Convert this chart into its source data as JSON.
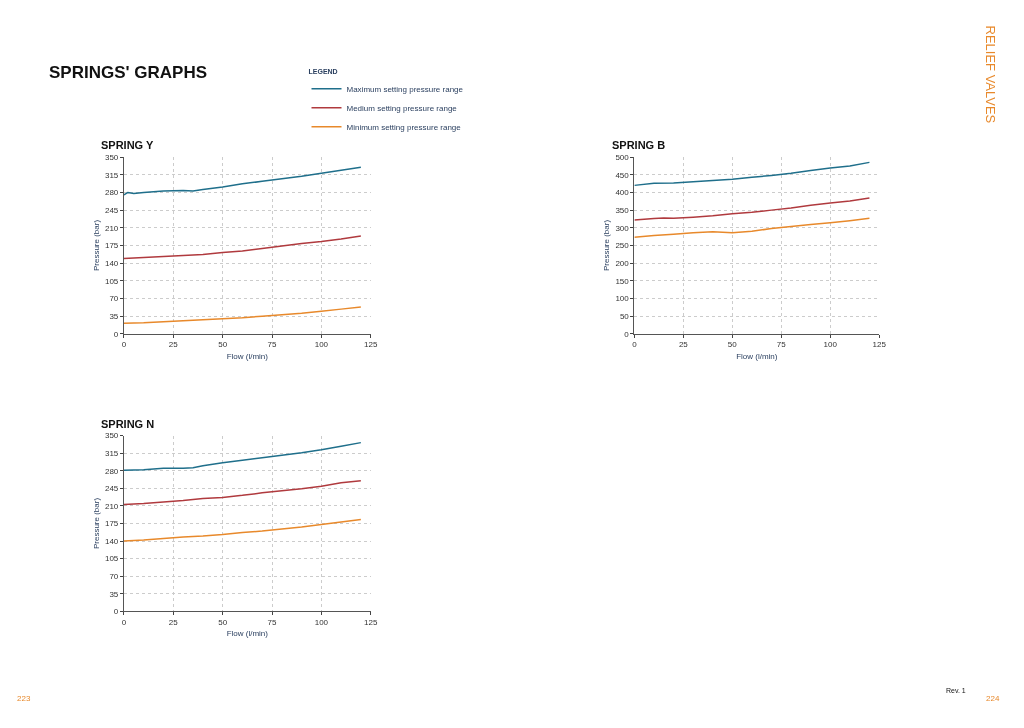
{
  "chart_data": [
    {
      "type": "line",
      "title": "SPRING Y",
      "xlabel": "Flow (l/min)",
      "ylabel": "Pressure (bar)",
      "legend_title": "LEGEND",
      "legend": "top",
      "grid": true,
      "marker": "none",
      "line_style": "solid",
      "xlim": [
        0,
        125
      ],
      "xticks": [
        0,
        25,
        50,
        75,
        100,
        125
      ],
      "ylim": [
        0,
        350
      ],
      "yticks": [
        0,
        35,
        70,
        105,
        140,
        175,
        210,
        245,
        280,
        315,
        350
      ],
      "annotations": [
        "SPRINGS' GRAPHS",
        "RELIEF VALVES",
        "223",
        "224",
        "Rev. 1"
      ],
      "series": [
        {
          "name": "Maximum setting pressure range",
          "color": "#1f6f8b",
          "x": [
            0,
            2,
            5,
            10,
            20,
            30,
            35,
            40,
            50,
            60,
            70,
            80,
            90,
            100,
            110,
            120
          ],
          "values": [
            275,
            280,
            278,
            280,
            283,
            284,
            283,
            286,
            291,
            297,
            302,
            307,
            312,
            318,
            324,
            330
          ]
        },
        {
          "name": "Medium setting pressure range",
          "color": "#b03a3e",
          "x": [
            0,
            10,
            20,
            30,
            40,
            50,
            60,
            70,
            80,
            90,
            100,
            110,
            120
          ],
          "values": [
            149,
            151,
            153,
            155,
            157,
            161,
            164,
            169,
            174,
            179,
            183,
            188,
            194
          ]
        },
        {
          "name": "Minimum setting pressure range",
          "color": "#e8892b",
          "x": [
            0,
            10,
            20,
            30,
            40,
            50,
            60,
            70,
            80,
            90,
            100,
            110,
            120
          ],
          "values": [
            21,
            22,
            24,
            26,
            28,
            30,
            32,
            35,
            38,
            41,
            45,
            49,
            53
          ]
        }
      ]
    },
    {
      "type": "line",
      "title": "SPRING B",
      "xlabel": "Flow (l/min)",
      "ylabel": "Pressure (bar)",
      "grid": true,
      "marker": "none",
      "line_style": "solid",
      "xlim": [
        0,
        125
      ],
      "xticks": [
        0,
        25,
        50,
        75,
        100,
        125
      ],
      "ylim": [
        0,
        500
      ],
      "yticks": [
        0,
        50,
        100,
        150,
        200,
        250,
        300,
        350,
        400,
        450,
        500
      ],
      "series": [
        {
          "name": "Maximum setting pressure range",
          "color": "#1f6f8b",
          "x": [
            0,
            10,
            20,
            30,
            40,
            50,
            60,
            70,
            80,
            90,
            100,
            110,
            120
          ],
          "values": [
            420,
            426,
            427,
            430,
            434,
            437,
            443,
            448,
            454,
            462,
            469,
            475,
            485
          ]
        },
        {
          "name": "Medium setting pressure range",
          "color": "#b03a3e",
          "x": [
            0,
            10,
            15,
            20,
            30,
            40,
            50,
            60,
            70,
            80,
            90,
            100,
            110,
            120
          ],
          "values": [
            322,
            326,
            328,
            327,
            330,
            334,
            340,
            344,
            350,
            356,
            364,
            370,
            376,
            384
          ]
        },
        {
          "name": "Minimum setting pressure range",
          "color": "#e8892b",
          "x": [
            0,
            10,
            20,
            30,
            40,
            50,
            60,
            70,
            80,
            90,
            100,
            110,
            120
          ],
          "values": [
            273,
            278,
            282,
            286,
            289,
            286,
            290,
            298,
            304,
            309,
            314,
            320,
            327
          ]
        }
      ]
    },
    {
      "type": "line",
      "title": "SPRING N",
      "xlabel": "Flow (l/min)",
      "ylabel": "Pressure (bar)",
      "grid": true,
      "marker": "none",
      "line_style": "solid",
      "xlim": [
        0,
        125
      ],
      "xticks": [
        0,
        25,
        50,
        75,
        100,
        125
      ],
      "ylim": [
        0,
        350
      ],
      "yticks": [
        0,
        35,
        70,
        105,
        140,
        175,
        210,
        245,
        280,
        315,
        350
      ],
      "series": [
        {
          "name": "Maximum setting pressure range",
          "color": "#1f6f8b",
          "x": [
            0,
            10,
            20,
            30,
            35,
            40,
            50,
            60,
            70,
            80,
            90,
            100,
            110,
            120
          ],
          "values": [
            281,
            282,
            285,
            285,
            286,
            290,
            296,
            301,
            306,
            311,
            316,
            322,
            329,
            336
          ]
        },
        {
          "name": "Medium setting pressure range",
          "color": "#b03a3e",
          "x": [
            0,
            10,
            20,
            30,
            40,
            50,
            60,
            70,
            80,
            90,
            100,
            110,
            120
          ],
          "values": [
            213,
            215,
            218,
            221,
            225,
            227,
            231,
            236,
            240,
            244,
            249,
            256,
            260
          ]
        },
        {
          "name": "Minimum setting pressure range",
          "color": "#e8892b",
          "x": [
            0,
            10,
            20,
            30,
            40,
            50,
            60,
            70,
            80,
            90,
            100,
            110,
            120
          ],
          "values": [
            140,
            142,
            145,
            148,
            150,
            153,
            157,
            160,
            164,
            168,
            173,
            178,
            183
          ]
        }
      ]
    }
  ]
}
